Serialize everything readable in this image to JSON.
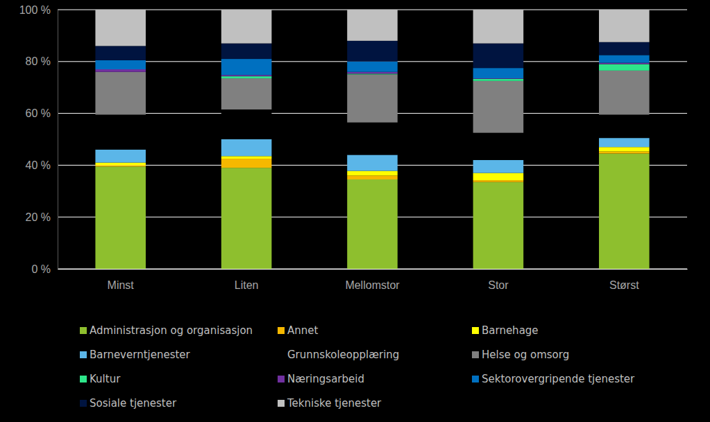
{
  "chart_data": {
    "type": "bar",
    "stacked": true,
    "grid": true,
    "legend": "bottom",
    "categories": [
      "Minst",
      "Liten",
      "Mellomstor",
      "Stor",
      "Størst"
    ],
    "ylim": [
      0,
      100
    ],
    "yticks": [
      {
        "value": 0,
        "label": "0 %"
      },
      {
        "value": 20,
        "label": "20 %"
      },
      {
        "value": 40,
        "label": "40 %"
      },
      {
        "value": 60,
        "label": "60 %"
      },
      {
        "value": 80,
        "label": "80 %"
      },
      {
        "value": 100,
        "label": "100 %"
      }
    ],
    "series": [
      {
        "name": "Administrasjon og organisasjon",
        "color": "#8ebf2e",
        "values": [
          39.5,
          39,
          34.5,
          33.5,
          44.5
        ]
      },
      {
        "name": "Annet",
        "color": "#f5b800",
        "values": [
          0.5,
          3.5,
          1.5,
          0.7,
          0.8
        ]
      },
      {
        "name": "Barnehage",
        "color": "#ffff00",
        "values": [
          1,
          1,
          1.8,
          2.8,
          1.7
        ]
      },
      {
        "name": "Barneverntjenester",
        "color": "#5bb6e8",
        "values": [
          5,
          6.5,
          6.2,
          5,
          3.5
        ]
      },
      {
        "name": "Grunnskoleopplæring",
        "color": "#000000",
        "values": [
          13.5,
          11.5,
          12.5,
          10.5,
          9
        ]
      },
      {
        "name": "Helse og omsorg",
        "color": "#808080",
        "values": [
          16.5,
          12,
          18.5,
          20,
          17
        ]
      },
      {
        "name": "Kultur",
        "color": "#2ee68a",
        "values": [
          0,
          0.8,
          0.3,
          0.8,
          2.5
        ]
      },
      {
        "name": "Næringsarbeid",
        "color": "#7030a0",
        "values": [
          1,
          0.5,
          0.7,
          0.2,
          0.5
        ]
      },
      {
        "name": "Sektorovergripende tjenester",
        "color": "#0070c0",
        "values": [
          3.5,
          6.2,
          4,
          4,
          3
        ]
      },
      {
        "name": "Sosiale tjenester",
        "color": "#001440",
        "values": [
          5.5,
          6,
          8,
          9.5,
          5
        ]
      },
      {
        "name": "Tekniske tjenester",
        "color": "#c0c0c0",
        "values": [
          14,
          13,
          12,
          13,
          12.5
        ]
      }
    ]
  }
}
